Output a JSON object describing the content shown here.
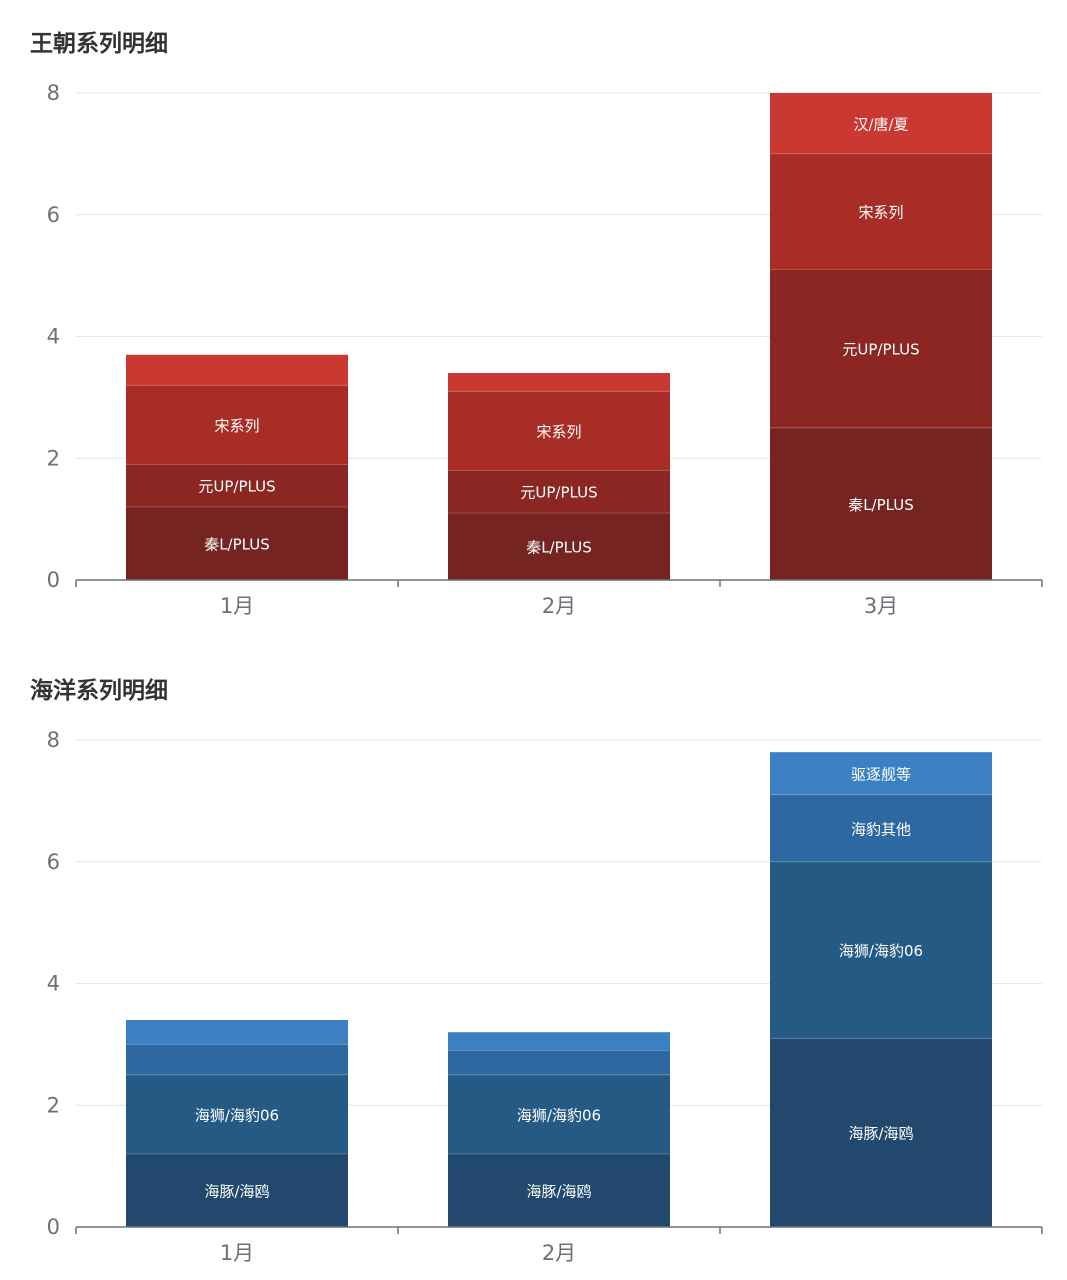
{
  "chart_data": [
    {
      "type": "bar",
      "stacked": true,
      "title": "王朝系列明细",
      "categories": [
        "1月",
        "2月",
        "3月"
      ],
      "ylim": [
        0,
        8
      ],
      "yticks": [
        0,
        2,
        4,
        6,
        8
      ],
      "grid": true,
      "legend": "none",
      "series": [
        {
          "label": "秦L/PLUS",
          "values": [
            1.2,
            1.1,
            2.5
          ],
          "color": "#752422",
          "labels_shown": [
            true,
            true,
            true
          ]
        },
        {
          "label": "元UP/PLUS",
          "values": [
            0.7,
            0.7,
            2.6
          ],
          "color": "#8b2623",
          "labels_shown": [
            true,
            true,
            true
          ]
        },
        {
          "label": "宋系列",
          "values": [
            1.3,
            1.3,
            1.9
          ],
          "color": "#a82d26",
          "labels_shown": [
            true,
            true,
            true
          ]
        },
        {
          "label": "汉/唐/夏",
          "values": [
            0.5,
            0.3,
            1.0
          ],
          "color": "#c93831",
          "labels_shown": [
            false,
            false,
            true
          ]
        }
      ]
    },
    {
      "type": "bar",
      "stacked": true,
      "title": "海洋系列明细",
      "categories": [
        "1月",
        "2月",
        ""
      ],
      "ylim": [
        0,
        8
      ],
      "yticks": [
        0,
        2,
        4,
        6,
        8
      ],
      "grid": true,
      "legend": "none",
      "series": [
        {
          "label": "海豚/海鸥",
          "values": [
            1.2,
            1.2,
            3.1
          ],
          "color": "#22486d",
          "labels_shown": [
            true,
            true,
            true
          ]
        },
        {
          "label": "海狮/海豹06",
          "values": [
            1.3,
            1.3,
            2.9
          ],
          "color": "#255a85",
          "labels_shown": [
            true,
            true,
            true
          ]
        },
        {
          "label": "海豹其他",
          "values": [
            0.5,
            0.4,
            1.1
          ],
          "color": "#2e68a2",
          "labels_shown": [
            false,
            false,
            true
          ]
        },
        {
          "label": "驱逐舰等",
          "values": [
            0.4,
            0.3,
            0.7
          ],
          "color": "#3a80c3",
          "labels_shown": [
            false,
            false,
            true
          ]
        }
      ]
    }
  ]
}
